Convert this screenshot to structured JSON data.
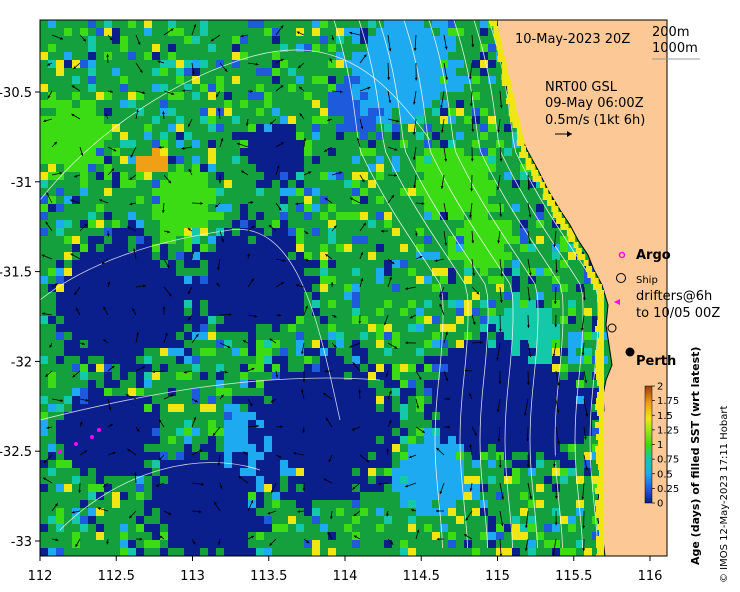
{
  "map": {
    "date": "10-May-2023 20Z",
    "isobath_labels": [
      "200m",
      "1000m"
    ],
    "current_source": "NRT00 GSL",
    "current_time": "09-May 06:00Z",
    "current_scale": "0.5m/s (1kt 6h)",
    "x_ticks": [
      "112",
      "112.5",
      "113",
      "113.5",
      "114",
      "114.5",
      "115",
      "115.5",
      "116"
    ],
    "y_ticks": [
      "-30.5",
      "-31",
      "-31.5",
      "-32",
      "-32.5",
      "-33"
    ],
    "x_tick_values": [
      112,
      112.5,
      113,
      113.5,
      114,
      114.5,
      115,
      115.5,
      116
    ],
    "y_tick_values": [
      -30.5,
      -31,
      -31.5,
      -32,
      -32.5,
      -33
    ],
    "legend": {
      "argo": "Argo",
      "ship": "Ship",
      "drifters_line1": "drifters@6h",
      "drifters_line2": "to 10/05 00Z"
    },
    "city": "Perth",
    "colorbar": {
      "title": "Age (days) of filled SST (wrt latest)",
      "ticks": [
        "2",
        "1.75",
        "1.5",
        "1.25",
        "1",
        "0.75",
        "0.5",
        "0.25",
        "0"
      ],
      "tick_values": [
        2,
        1.75,
        1.5,
        1.25,
        1,
        0.75,
        0.5,
        0.25,
        0
      ]
    },
    "credit": "© IMOS 12-May-2023 17:11 Hobart",
    "colors": {
      "land": "#fbc896",
      "deep_blue": "#0a1e8c",
      "blue": "#1e5adc",
      "sky": "#1eaaf0",
      "teal": "#14c8aa",
      "green": "#14a03c",
      "lime": "#3cdc14",
      "yellow": "#f0e614",
      "orange": "#f0a014",
      "argo": "#ff00ff"
    }
  }
}
